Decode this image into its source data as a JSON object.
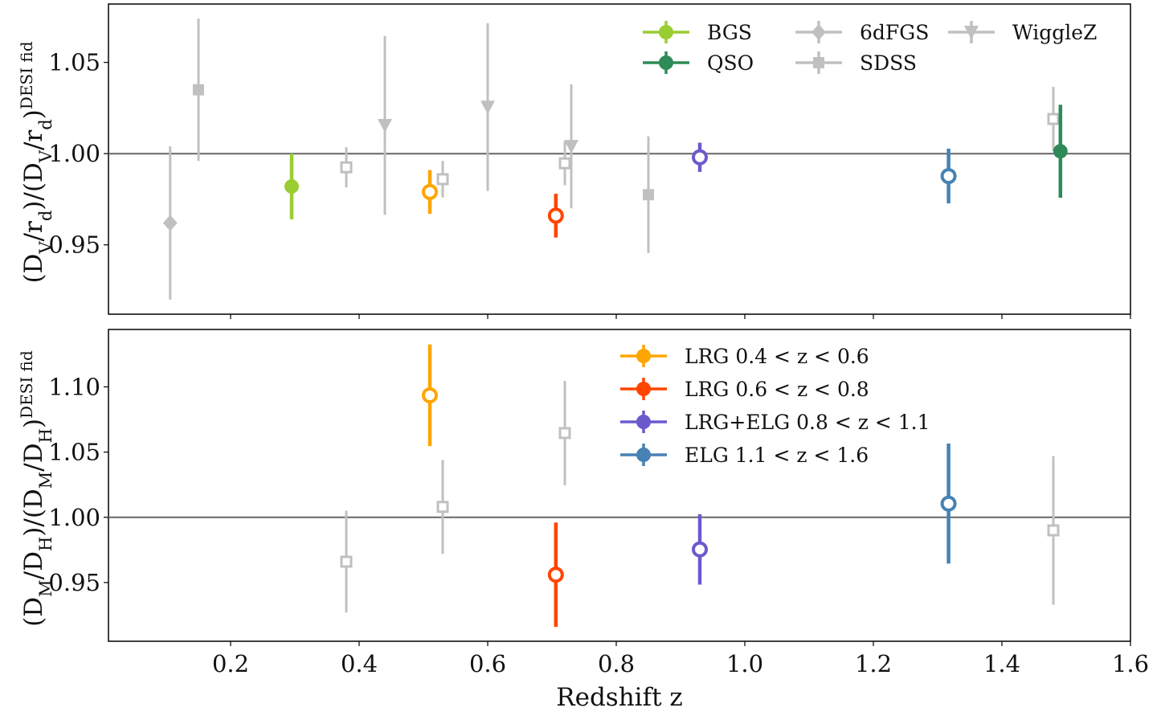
{
  "chart_data": {
    "type": "scatter",
    "xlabel": "Redshift z",
    "xlim": [
      0.01,
      1.6
    ],
    "xticks": [
      "0.2",
      "0.4",
      "0.6",
      "0.8",
      "1.0",
      "1.2",
      "1.4",
      "1.6"
    ],
    "reference_line": 1.0,
    "colors": {
      "BGS": "#9acd32",
      "QSO": "#2e8b57",
      "LRG1": "#ffa500",
      "LRG2": "#ff4500",
      "LRGELG": "#6a5acd",
      "ELG": "#4682b4",
      "prior": "#c0c0c0",
      "refline": "#666666"
    },
    "panels": [
      {
        "ylabel": "(D_V/r_d)/(D_V/r_d)^{DESI fid}",
        "ylim": [
          0.912,
          1.082
        ],
        "yticks": [
          "0.95",
          "1.00",
          "1.05"
        ],
        "legend": {
          "placement": "upper-right",
          "entries": [
            {
              "label": "BGS",
              "key": "BGS",
              "marker": "circle"
            },
            {
              "label": "QSO",
              "key": "QSO",
              "marker": "circle"
            },
            {
              "label": "6dFGS",
              "key": "prior",
              "marker": "diamond"
            },
            {
              "label": "SDSS",
              "key": "prior",
              "marker": "square"
            },
            {
              "label": "WiggleZ",
              "key": "prior",
              "marker": "triangle-down"
            }
          ]
        },
        "points": [
          {
            "survey": "6dFGS",
            "key": "prior",
            "marker": "diamond",
            "z": 0.106,
            "y": 0.962,
            "err": 0.042
          },
          {
            "survey": "SDSS",
            "key": "prior",
            "marker": "square",
            "z": 0.15,
            "y": 1.035,
            "err": 0.039
          },
          {
            "survey": "BGS",
            "key": "BGS",
            "marker": "circle",
            "z": 0.295,
            "y": 0.982,
            "err": 0.018
          },
          {
            "survey": "SDSS",
            "key": "prior",
            "marker": "open-square",
            "z": 0.38,
            "y": 0.9925,
            "err": 0.011
          },
          {
            "survey": "WiggleZ",
            "key": "prior",
            "marker": "triangle-down",
            "z": 0.44,
            "y": 1.0155,
            "err": 0.049
          },
          {
            "survey": "LRG 0.4<z<0.6",
            "key": "LRG1",
            "marker": "open-circle",
            "z": 0.51,
            "y": 0.979,
            "err": 0.012
          },
          {
            "survey": "SDSS",
            "key": "prior",
            "marker": "open-square",
            "z": 0.53,
            "y": 0.986,
            "err": 0.01
          },
          {
            "survey": "WiggleZ",
            "key": "prior",
            "marker": "triangle-down",
            "z": 0.6,
            "y": 1.0255,
            "err": 0.046
          },
          {
            "survey": "LRG 0.6<z<0.8",
            "key": "LRG2",
            "marker": "open-circle",
            "z": 0.706,
            "y": 0.966,
            "err": 0.012
          },
          {
            "survey": "SDSS",
            "key": "prior",
            "marker": "open-square",
            "z": 0.72,
            "y": 0.9947,
            "err": 0.012
          },
          {
            "survey": "WiggleZ",
            "key": "prior",
            "marker": "triangle-down",
            "z": 0.73,
            "y": 1.004,
            "err": 0.034
          },
          {
            "survey": "SDSS",
            "key": "prior",
            "marker": "square",
            "z": 0.85,
            "y": 0.9775,
            "err": 0.032
          },
          {
            "survey": "LRG+ELG 0.8<z<1.1",
            "key": "LRGELG",
            "marker": "open-circle",
            "z": 0.93,
            "y": 0.998,
            "err": 0.008
          },
          {
            "survey": "ELG 1.1<z<1.6",
            "key": "ELG",
            "marker": "open-circle",
            "z": 1.317,
            "y": 0.9877,
            "err": 0.015
          },
          {
            "survey": "SDSS",
            "key": "prior",
            "marker": "open-square",
            "z": 1.48,
            "y": 1.019,
            "err": 0.0176
          },
          {
            "survey": "QSO",
            "key": "QSO",
            "marker": "circle",
            "z": 1.491,
            "y": 1.0013,
            "err": 0.0255
          }
        ]
      },
      {
        "ylabel": "(D_M/D_H)/(D_M/D_H)^{DESI fid}",
        "ylim": [
          0.905,
          1.144
        ],
        "yticks": [
          "0.95",
          "1.00",
          "1.05",
          "1.10"
        ],
        "legend": {
          "placement": "upper-center",
          "entries": [
            {
              "label": "LRG 0.4 < z < 0.6",
              "key": "LRG1",
              "marker": "circle"
            },
            {
              "label": "LRG 0.6 < z < 0.8",
              "key": "LRG2",
              "marker": "circle"
            },
            {
              "label": "LRG+ELG 0.8 < z < 1.1",
              "key": "LRGELG",
              "marker": "circle"
            },
            {
              "label": "ELG 1.1 < z < 1.6",
              "key": "ELG",
              "marker": "circle"
            }
          ]
        },
        "points": [
          {
            "survey": "SDSS",
            "key": "prior",
            "marker": "open-square",
            "z": 0.38,
            "y": 0.966,
            "err": 0.039
          },
          {
            "survey": "LRG 0.4<z<0.6",
            "key": "LRG1",
            "marker": "open-circle",
            "z": 0.51,
            "y": 1.0935,
            "err": 0.039
          },
          {
            "survey": "SDSS",
            "key": "prior",
            "marker": "open-square",
            "z": 0.53,
            "y": 1.008,
            "err": 0.036
          },
          {
            "survey": "LRG 0.6<z<0.8",
            "key": "LRG2",
            "marker": "open-circle",
            "z": 0.706,
            "y": 0.956,
            "err": 0.04
          },
          {
            "survey": "SDSS",
            "key": "prior",
            "marker": "open-square",
            "z": 0.72,
            "y": 1.0646,
            "err": 0.04
          },
          {
            "survey": "LRG+ELG 0.8<z<1.1",
            "key": "LRGELG",
            "marker": "open-circle",
            "z": 0.93,
            "y": 0.9754,
            "err": 0.027
          },
          {
            "survey": "ELG 1.1<z<1.6",
            "key": "ELG",
            "marker": "open-circle",
            "z": 1.317,
            "y": 1.0105,
            "err": 0.046
          },
          {
            "survey": "SDSS",
            "key": "prior",
            "marker": "open-square",
            "z": 1.48,
            "y": 0.99,
            "err": 0.057
          }
        ]
      }
    ]
  }
}
